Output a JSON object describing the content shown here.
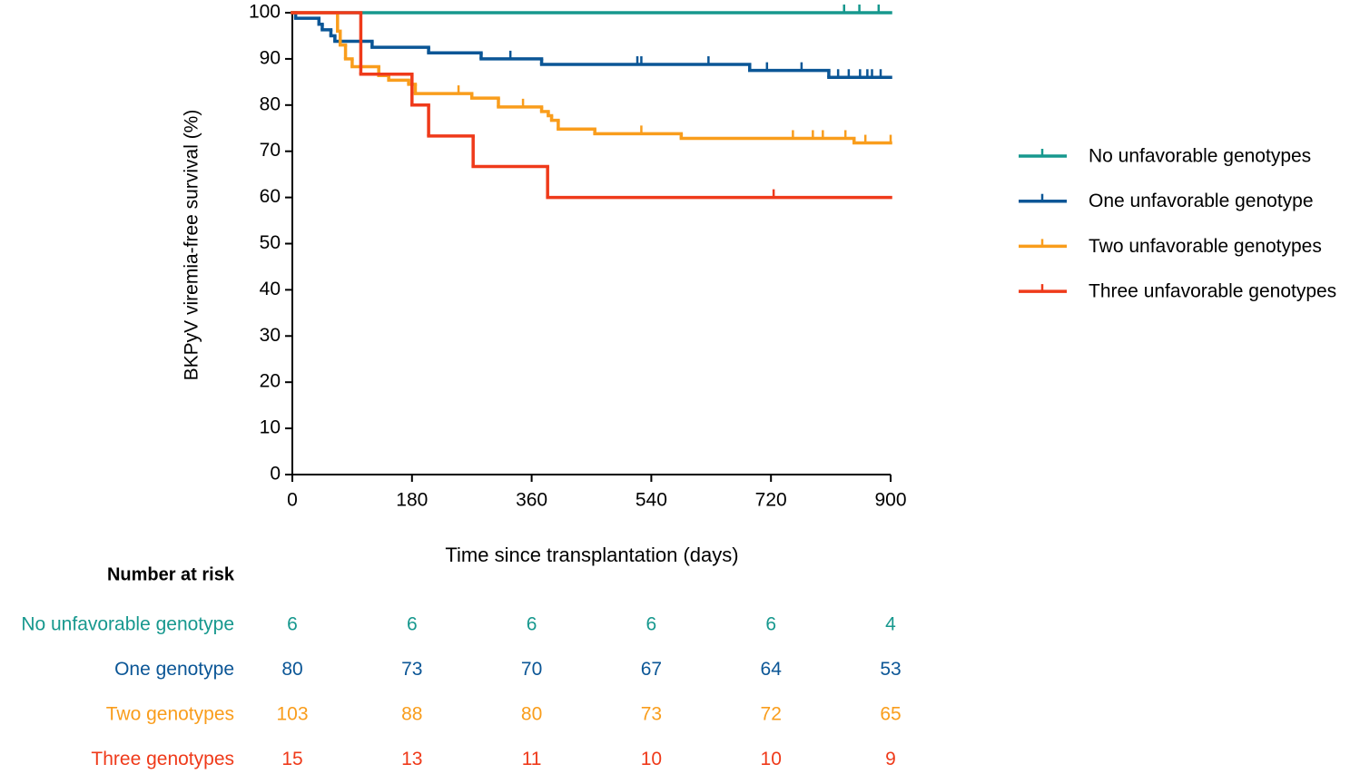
{
  "chart_data": {
    "type": "step",
    "y_label": "BKPyV viremia-free survival (%)",
    "x_label": "Time since transplantation (days)",
    "xlim": [
      0,
      900
    ],
    "xticks": [
      0,
      180,
      360,
      540,
      720,
      900
    ],
    "ylim": [
      0,
      100
    ],
    "yticks": [
      0,
      10,
      20,
      30,
      40,
      50,
      60,
      70,
      80,
      90,
      100
    ],
    "grid": false,
    "legend": "right",
    "series": [
      {
        "name": "No unfavorable genotypes",
        "color": "#17988e",
        "x": [
          0
        ],
        "values": [
          100
        ],
        "censored": [
          830,
          853,
          882
        ]
      },
      {
        "name": "One unfavorable genotype",
        "color": "#0b5696",
        "x": [
          0,
          5,
          40,
          45,
          58,
          64,
          120,
          205,
          284,
          375,
          688,
          807
        ],
        "values": [
          100,
          98.8,
          97.5,
          96.3,
          95,
          93.8,
          92.5,
          91.3,
          90,
          88.8,
          87.5,
          86
        ],
        "censored": [
          328,
          519,
          525,
          626,
          714,
          766,
          821,
          837,
          854,
          865,
          872,
          885
        ]
      },
      {
        "name": "Two unfavorable genotypes",
        "color": "#f99d1c",
        "x": [
          0,
          68,
          72,
          80,
          90,
          130,
          145,
          175,
          185,
          270,
          310,
          375,
          385,
          390,
          400,
          455,
          585,
          845
        ],
        "values": [
          100,
          96,
          93,
          90,
          88.3,
          86.4,
          85.4,
          84.5,
          82.5,
          81.5,
          79.6,
          78.6,
          77.7,
          76.7,
          74.8,
          73.8,
          72.8,
          71.8
        ],
        "censored": [
          250,
          347,
          525,
          753,
          783,
          798,
          832,
          862,
          900
        ]
      },
      {
        "name": "Three unfavorable genotypes",
        "color": "#ef3a1a",
        "x": [
          0,
          103,
          180,
          205,
          272,
          384
        ],
        "values": [
          100,
          86.7,
          80,
          73.3,
          66.7,
          60
        ],
        "censored": [
          724
        ]
      }
    ],
    "risk_table": {
      "title": "Number at risk",
      "rows": [
        {
          "label": "No unfavorable genotype",
          "color": "#17988e",
          "counts": [
            "6",
            "6",
            "6",
            "6",
            "6",
            "4"
          ]
        },
        {
          "label": "One genotype",
          "color": "#0b5696",
          "counts": [
            "80",
            "73",
            "70",
            "67",
            "64",
            "53"
          ]
        },
        {
          "label": "Two genotypes",
          "color": "#f99d1c",
          "counts": [
            "103",
            "88",
            "80",
            "73",
            "72",
            "65"
          ]
        },
        {
          "label": "Three genotypes",
          "color": "#ef3a1a",
          "counts": [
            "15",
            "13",
            "11",
            "10",
            "10",
            "9"
          ]
        }
      ]
    }
  }
}
